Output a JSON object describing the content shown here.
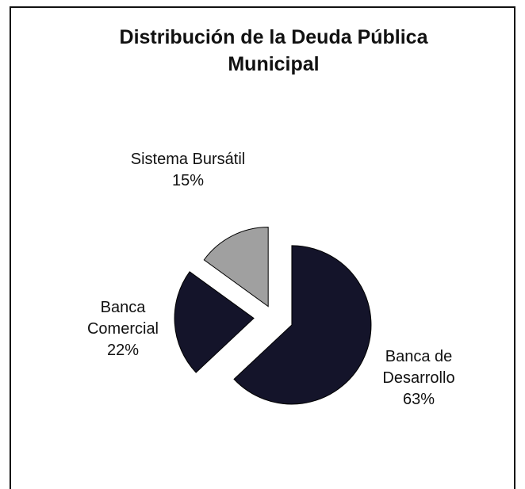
{
  "chart_data": {
    "type": "pie",
    "title": "Distribución de la Deuda Pública Municipal",
    "categories": [
      "Banca de Desarrollo",
      "Banca Comercial",
      "Sistema Bursátil"
    ],
    "values": [
      63,
      22,
      15
    ],
    "value_labels": [
      "63%",
      "22%",
      "15%"
    ],
    "colors": [
      "#14142a",
      "#14142a",
      "#a0a0a0"
    ]
  }
}
